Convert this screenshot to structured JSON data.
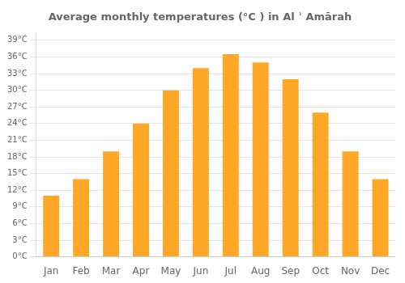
{
  "chart_data": {
    "type": "bar",
    "title": "Average monthly temperatures (°C ) in Al ʾ Amārah",
    "categories": [
      "Jan",
      "Feb",
      "Mar",
      "Apr",
      "May",
      "Jun",
      "Jul",
      "Aug",
      "Sep",
      "Oct",
      "Nov",
      "Dec"
    ],
    "values": [
      11,
      14,
      19,
      24,
      30,
      34,
      36.5,
      35,
      32,
      26,
      19,
      14
    ],
    "color": "#FFA726",
    "ylim": [
      0,
      40.5
    ],
    "yticks": [
      {
        "value": 0,
        "label": "0°C"
      },
      {
        "value": 3,
        "label": "3°C"
      },
      {
        "value": 6,
        "label": "6°C"
      },
      {
        "value": 9,
        "label": "9°C"
      },
      {
        "value": 12,
        "label": "12°C"
      },
      {
        "value": 15,
        "label": "15°C"
      },
      {
        "value": 18,
        "label": "18°C"
      },
      {
        "value": 21,
        "label": "21°C"
      },
      {
        "value": 24,
        "label": "24°C"
      },
      {
        "value": 27,
        "label": "27°C"
      },
      {
        "value": 30,
        "label": "30°C"
      },
      {
        "value": 33,
        "label": "33°C"
      },
      {
        "value": 36,
        "label": "36°C"
      },
      {
        "value": 39,
        "label": "39°C"
      }
    ],
    "grid": true
  }
}
